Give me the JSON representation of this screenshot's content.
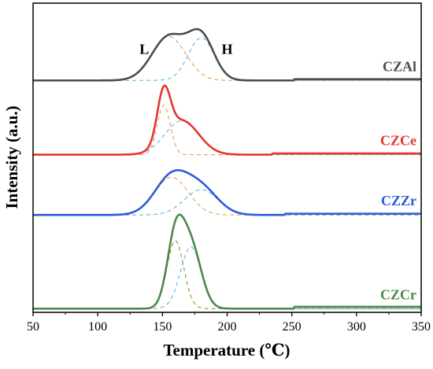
{
  "chart_data": {
    "type": "line",
    "title": "",
    "xlabel": "Temperature (℃)",
    "ylabel": "Intensity (a.u.)",
    "xlim": [
      50,
      350
    ],
    "xticks": [
      50,
      100,
      150,
      200,
      250,
      300,
      350
    ],
    "y_ticks_shown": false,
    "grid": false,
    "legend": "inline labels at right of each curve",
    "annotations": [
      {
        "text": "L",
        "x": 136,
        "series": "CZAl"
      },
      {
        "text": "H",
        "x": 200,
        "series": "CZAl"
      }
    ],
    "series": [
      {
        "name": "CZAl",
        "color": "#4d4d4d",
        "offset": 0.75,
        "peaks": [
          {
            "center": 155,
            "sigma": 13,
            "height": 0.142
          },
          {
            "center": 180,
            "sigma": 10,
            "height": 0.138
          }
        ],
        "step": {
          "at": 252,
          "height": 0.004
        }
      },
      {
        "name": "CZCe",
        "color": "#e8332e",
        "offset": 0.51,
        "peaks": [
          {
            "center": 151,
            "sigma": 5,
            "height": 0.16
          },
          {
            "center": 165,
            "sigma": 13,
            "height": 0.11
          }
        ],
        "step": {
          "at": 235,
          "height": 0.004
        }
      },
      {
        "name": "CZZr",
        "color": "#2e5bd6",
        "offset": 0.315,
        "peaks": [
          {
            "center": 157,
            "sigma": 13,
            "height": 0.122
          },
          {
            "center": 180,
            "sigma": 13,
            "height": 0.082
          }
        ],
        "step": {
          "at": 245,
          "height": 0.004
        }
      },
      {
        "name": "CZCr",
        "color": "#4a8a4a",
        "offset": 0.012,
        "peaks": [
          {
            "center": 160,
            "sigma": 6.5,
            "height": 0.22
          },
          {
            "center": 172,
            "sigma": 8,
            "height": 0.2
          }
        ],
        "step": {
          "at": 252,
          "height": 0.006
        }
      }
    ]
  },
  "colors": {
    "axis": "#000000",
    "fit_orange": "#e0a050",
    "fit_blue": "#5ab6d6",
    "fit_olive": "#8c9a2e"
  }
}
